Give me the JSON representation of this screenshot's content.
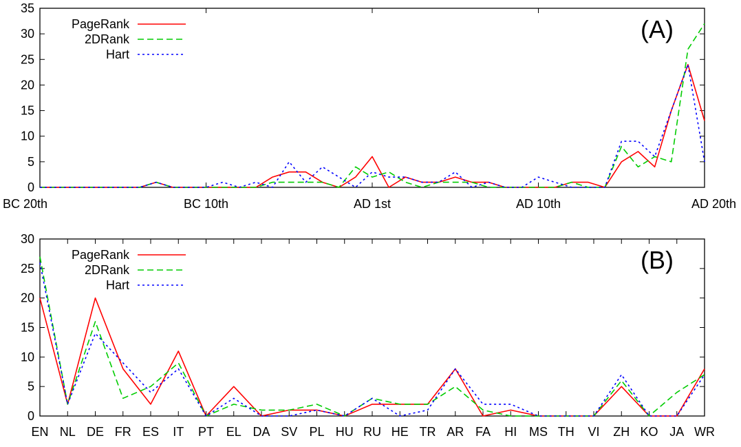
{
  "chart_data": [
    {
      "type": "line",
      "panel_label": "(A)",
      "x_tick_labels": [
        "BC 20th",
        "BC 10th",
        "AD 1st",
        "AD 10th",
        "AD 20th"
      ],
      "y_ticks": [
        "0",
        "5",
        "10",
        "15",
        "20",
        "25",
        "30",
        "35"
      ],
      "ylim": [
        0,
        35
      ],
      "x_range": [
        0,
        40
      ],
      "x_tick_positions": [
        0,
        10,
        20,
        30,
        40
      ],
      "legend_position": "top-left",
      "series": [
        {
          "name": "PageRank",
          "color": "#ff0000",
          "dash": "solid",
          "x": [
            0,
            6,
            7,
            8,
            13,
            14,
            15,
            16,
            17,
            18,
            19,
            20,
            21,
            22,
            23,
            24,
            25,
            26,
            27,
            28,
            30,
            31,
            32,
            33,
            34,
            35,
            36,
            37,
            38,
            39,
            40
          ],
          "y": [
            0,
            0,
            1,
            0,
            0,
            2,
            3,
            3,
            1,
            0,
            2,
            6,
            0,
            2,
            1,
            1,
            2,
            1,
            1,
            0,
            0,
            0,
            1,
            1,
            0,
            5,
            7,
            4,
            15,
            24,
            13
          ]
        },
        {
          "name": "2DRank",
          "color": "#00cc00",
          "dash": "dashed",
          "x": [
            0,
            6,
            7,
            8,
            13,
            14,
            15,
            16,
            17,
            18,
            19,
            20,
            21,
            22,
            23,
            24,
            25,
            26,
            27,
            28,
            30,
            31,
            32,
            33,
            34,
            35,
            36,
            37,
            38,
            39,
            40
          ],
          "y": [
            0,
            0,
            1,
            0,
            0,
            1,
            1,
            1,
            1,
            0,
            4,
            2,
            3,
            1,
            0,
            1,
            1,
            1,
            0,
            0,
            0,
            0,
            1,
            0,
            0,
            8,
            4,
            6,
            5,
            27,
            32
          ]
        },
        {
          "name": "Hart",
          "color": "#0000ff",
          "dash": "dotted",
          "x": [
            0,
            6,
            7,
            8,
            10,
            11,
            12,
            13,
            14,
            15,
            16,
            17,
            18,
            19,
            20,
            21,
            22,
            23,
            24,
            25,
            26,
            27,
            28,
            29,
            30,
            31,
            32,
            33,
            34,
            35,
            36,
            37,
            38,
            39,
            40
          ],
          "y": [
            0,
            0,
            1,
            0,
            0,
            1,
            0,
            1,
            0,
            5,
            1,
            4,
            2,
            0,
            3,
            2,
            2,
            1,
            1,
            3,
            0,
            1,
            0,
            0,
            2,
            1,
            0,
            0,
            0,
            9,
            9,
            6,
            15,
            24,
            5
          ]
        }
      ]
    },
    {
      "type": "line",
      "panel_label": "(B)",
      "categories": [
        "EN",
        "NL",
        "DE",
        "FR",
        "ES",
        "IT",
        "PT",
        "EL",
        "DA",
        "SV",
        "PL",
        "HU",
        "RU",
        "HE",
        "TR",
        "AR",
        "FA",
        "HI",
        "MS",
        "TH",
        "VI",
        "ZH",
        "KO",
        "JA",
        "WR"
      ],
      "y_ticks": [
        "0",
        "5",
        "10",
        "15",
        "20",
        "25",
        "30"
      ],
      "ylim": [
        0,
        30
      ],
      "legend_position": "top-left",
      "series": [
        {
          "name": "PageRank",
          "color": "#ff0000",
          "dash": "solid",
          "values": [
            20,
            2,
            20,
            8,
            2,
            11,
            0,
            5,
            0,
            1,
            1,
            0,
            2,
            2,
            2,
            8,
            0,
            1,
            0,
            0,
            0,
            5,
            0,
            0,
            8
          ]
        },
        {
          "name": "2DRank",
          "color": "#00cc00",
          "dash": "dashed",
          "values": [
            27,
            2,
            16,
            3,
            5,
            9,
            0,
            2,
            1,
            1,
            2,
            0,
            3,
            2,
            2,
            5,
            1,
            0,
            0,
            0,
            0,
            6,
            0,
            4,
            7
          ]
        },
        {
          "name": "Hart",
          "color": "#0000ff",
          "dash": "dotted",
          "values": [
            26,
            2,
            14,
            9,
            4,
            8,
            0,
            3,
            0,
            0,
            1,
            0,
            3,
            0,
            1,
            8,
            2,
            2,
            0,
            0,
            0,
            7,
            0,
            0,
            7
          ]
        }
      ]
    }
  ]
}
